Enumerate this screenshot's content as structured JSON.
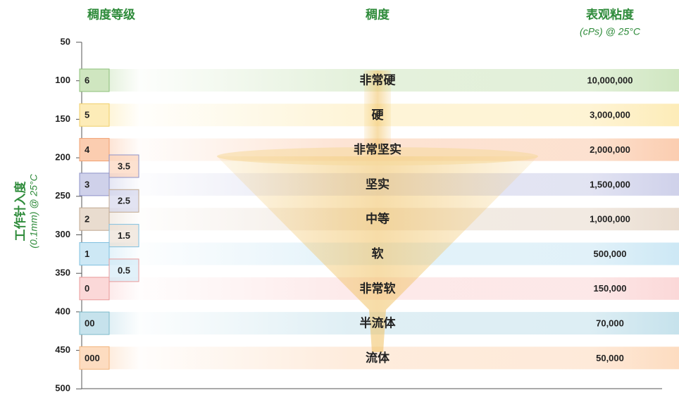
{
  "header": {
    "grade_title": "稠度等级",
    "consistency_title": "稠度",
    "viscosity_title": "表观粘度",
    "viscosity_unit": "(cPs) @ 25°C"
  },
  "axis": {
    "title": "工作针入度",
    "unit": "(0.1mm) @ 25°C",
    "ticks": [
      "50",
      "100",
      "150",
      "200",
      "250",
      "300",
      "350",
      "400",
      "450",
      "500"
    ]
  },
  "rows": [
    {
      "grade": "6",
      "consistency": "非常硬",
      "viscosity": "10,000,000"
    },
    {
      "grade": "5",
      "consistency": "硬",
      "viscosity": "3,000,000"
    },
    {
      "grade": "4",
      "consistency": "非常坚实",
      "viscosity": "2,000,000"
    },
    {
      "grade": "3",
      "consistency": "坚实",
      "viscosity": "1,500,000"
    },
    {
      "grade": "2",
      "consistency": "中等",
      "viscosity": "1,000,000"
    },
    {
      "grade": "1",
      "consistency": "软",
      "viscosity": "500,000"
    },
    {
      "grade": "0",
      "consistency": "非常软",
      "viscosity": "150,000"
    },
    {
      "grade": "00",
      "consistency": "半流体",
      "viscosity": "70,000"
    },
    {
      "grade": "000",
      "consistency": "流体",
      "viscosity": "50,000"
    }
  ],
  "half_grades": [
    "3.5",
    "2.5",
    "1.5",
    "0.5"
  ]
}
